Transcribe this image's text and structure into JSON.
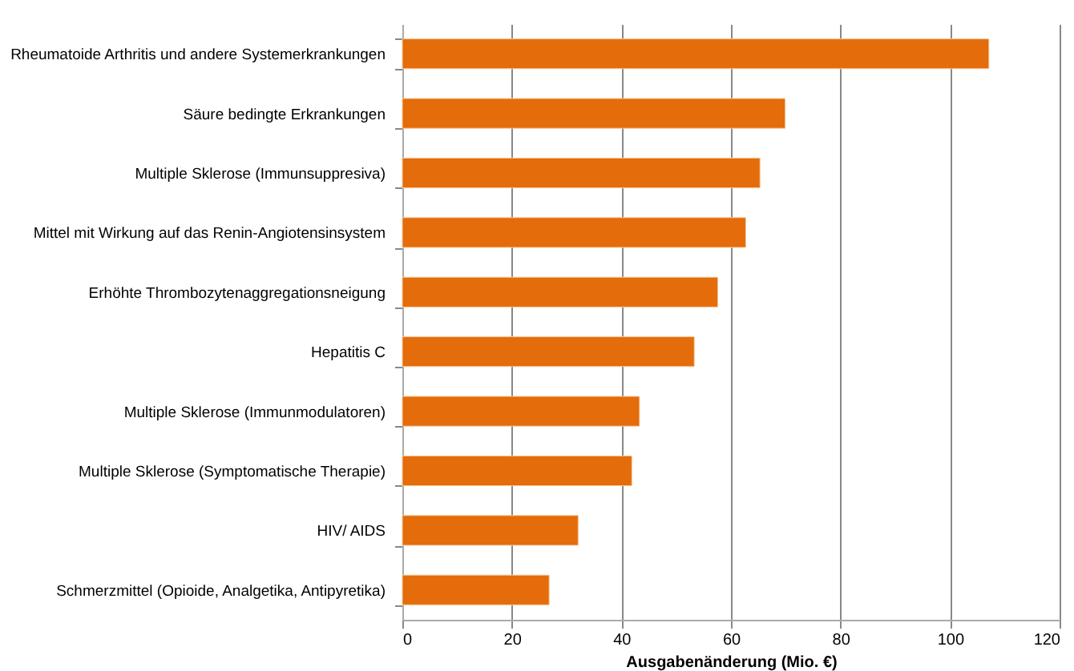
{
  "chart_data": {
    "type": "bar",
    "orientation": "horizontal",
    "xlabel": "Ausgabenänderung (Mio. €)",
    "categories": [
      "Rheumatoide Arthritis und andere Systemerkrankungen",
      "Säure bedingte Erkrankungen",
      "Multiple Sklerose (Immunsuppresiva)",
      "Mittel mit Wirkung auf das Renin-Angiotensinsystem",
      "Erhöhte Thrombozytenaggregationsneigung",
      "Hepatitis C",
      "Multiple Sklerose (Immunmodulatoren)",
      "Multiple Sklerose (Symptomatische Therapie)",
      "HIV/ AIDS",
      "Schmerzmittel (Opioide, Analgetika, Antipyretika)"
    ],
    "values": [
      107.1,
      69.9,
      65.3,
      62.7,
      57.6,
      53.3,
      43.3,
      41.9,
      32.1,
      26.8
    ],
    "color": "#e46c0a",
    "xlim": [
      0,
      120
    ],
    "xticks": [
      0,
      20,
      40,
      60,
      80,
      100,
      120
    ],
    "grid": "x"
  }
}
